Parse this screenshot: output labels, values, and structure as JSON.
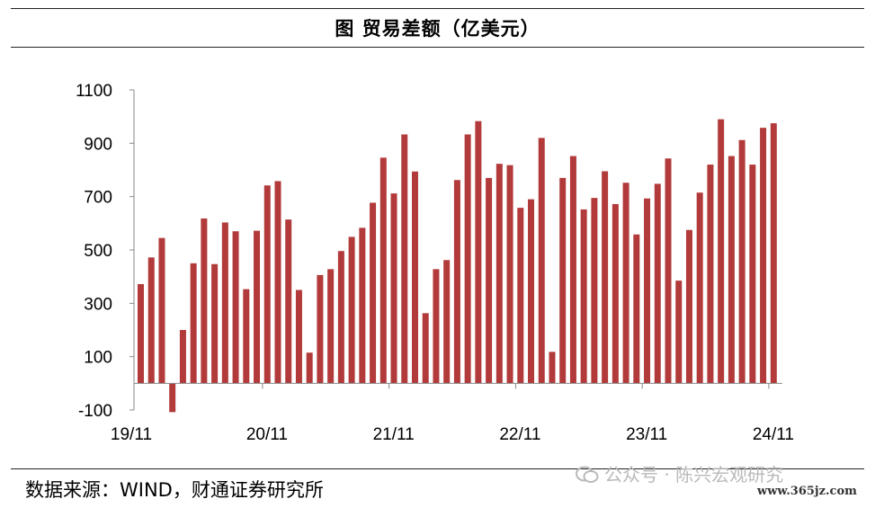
{
  "header": {
    "title": "图  贸易差额（亿美元）"
  },
  "footer": {
    "source": "数据来源：WIND，财通证券研究所",
    "watermark": "公众号 · 陈兴宏观研究",
    "watermark_url": "www.365jz.com"
  },
  "chart_data": {
    "type": "bar",
    "title": "图  贸易差额（亿美元）",
    "xlabel": "",
    "ylabel": "",
    "ylim": [
      -100,
      1100
    ],
    "y_ticks": [
      1100,
      900,
      700,
      500,
      300,
      100,
      -100
    ],
    "x_tick_labels": [
      {
        "label": "19/11",
        "index": 0
      },
      {
        "label": "20/11",
        "index": 12
      },
      {
        "label": "21/11",
        "index": 24
      },
      {
        "label": "22/11",
        "index": 36
      },
      {
        "label": "23/11",
        "index": 48
      },
      {
        "label": "24/11",
        "index": 60
      }
    ],
    "grid": false,
    "bar_color": "#b23a3a",
    "values": [
      372,
      472,
      545,
      -108,
      200,
      450,
      618,
      447,
      603,
      570,
      353,
      572,
      742,
      758,
      614,
      350,
      115,
      406,
      428,
      496,
      549,
      583,
      677,
      846,
      712,
      933,
      794,
      263,
      428,
      462,
      762,
      933,
      983,
      770,
      823,
      818,
      658,
      690,
      920,
      118,
      770,
      852,
      652,
      695,
      795,
      672,
      752,
      558,
      693,
      748,
      843,
      385,
      575,
      715,
      820,
      990,
      852,
      912,
      820,
      958,
      975
    ]
  }
}
